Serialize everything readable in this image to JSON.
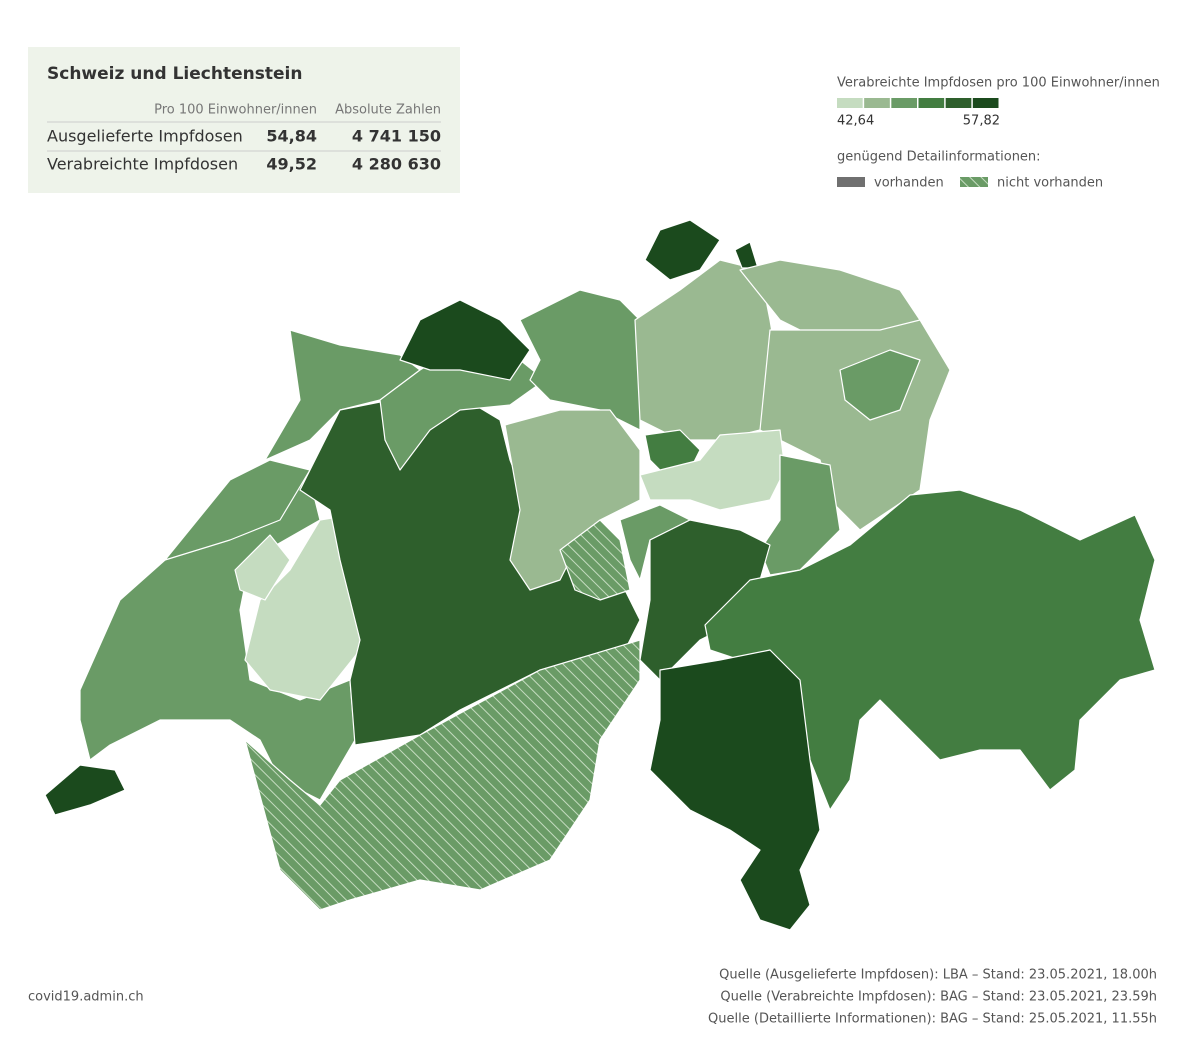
{
  "summary": {
    "title": "Schweiz und Liechtenstein",
    "columns": [
      "Pro 100 Einwohner/innen",
      "Absolute Zahlen"
    ],
    "rows": [
      {
        "label": "Ausgelieferte Impfdosen",
        "per100": "54,84",
        "absolute": "4 741 150"
      },
      {
        "label": "Verabreichte Impfdosen",
        "per100": "49,52",
        "absolute": "4 280 630"
      }
    ]
  },
  "legend": {
    "title": "Verabreichte Impfdosen pro 100 Einwohner/innen",
    "min_label": "42,64",
    "max_label": "57,82",
    "colors": [
      "#c5dcc0",
      "#9ab991",
      "#6a9b66",
      "#437d41",
      "#2e5f2c",
      "#1b4a1d"
    ],
    "detail_title": "genügend Detailinformationen:",
    "available": "vorhanden",
    "not_available": "nicht vorhanden"
  },
  "footer": {
    "site": "covid19.admin.ch",
    "sources": [
      "Quelle (Ausgelieferte Impfdosen): LBA – Stand: 23.05.2021, 18.00h",
      "Quelle (Verabreichte Impfdosen): BAG – Stand: 23.05.2021, 23.59h",
      "Quelle (Detaillierte Informationen): BAG – Stand: 25.05.2021, 11.55h"
    ]
  }
}
